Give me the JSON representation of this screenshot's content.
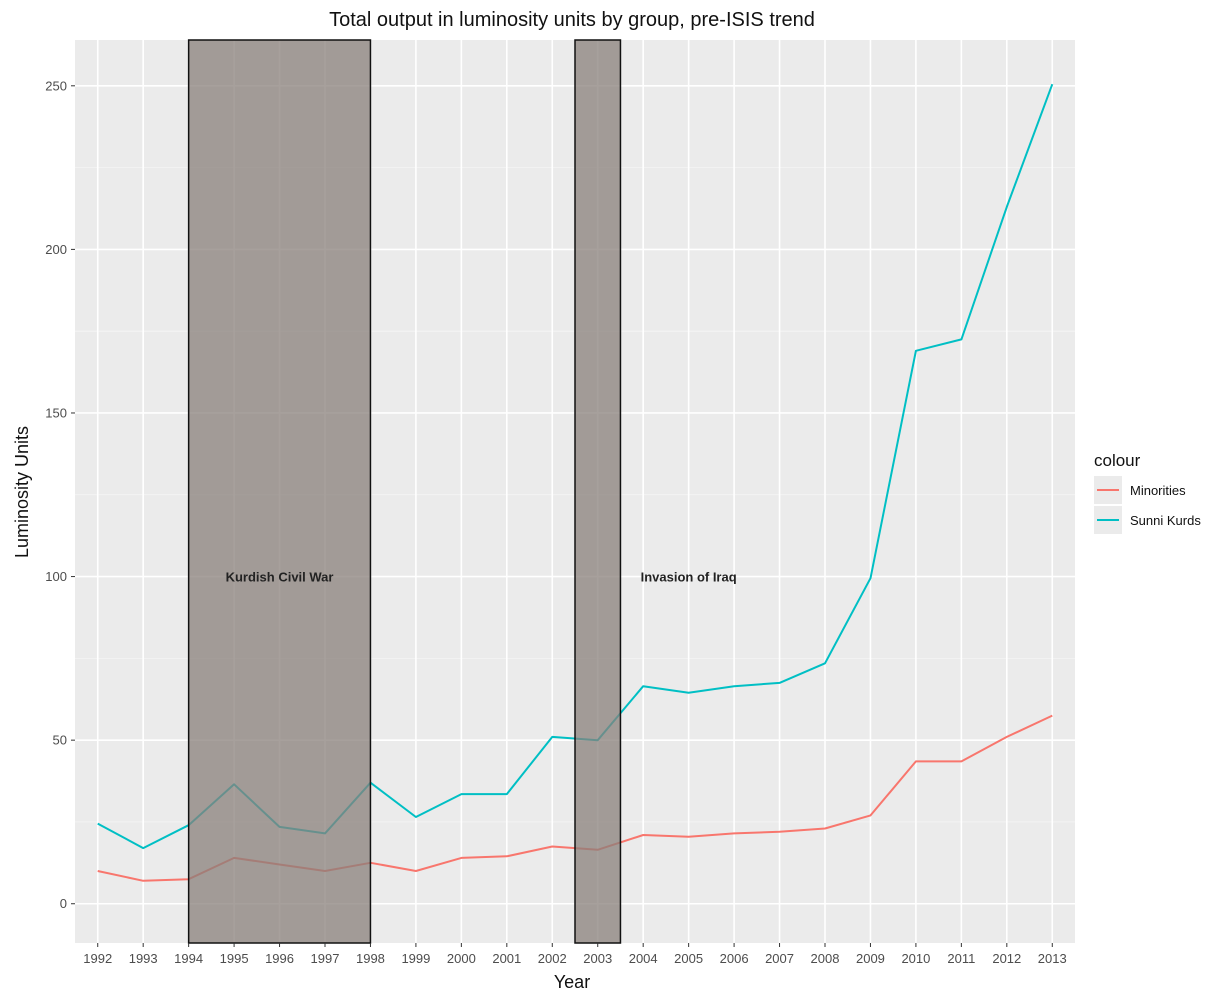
{
  "chart_data": {
    "type": "line",
    "title": "Total output in luminosity units by group, pre-ISIS trend",
    "xlabel": "Year",
    "ylabel": "Luminosity Units",
    "x": [
      1992,
      1993,
      1994,
      1995,
      1996,
      1997,
      1998,
      1999,
      2000,
      2001,
      2002,
      2003,
      2004,
      2005,
      2006,
      2007,
      2008,
      2009,
      2010,
      2011,
      2012,
      2013
    ],
    "xlim": [
      1991.5,
      2013.5
    ],
    "ylim": [
      -12,
      264
    ],
    "yticks": [
      0,
      50,
      100,
      150,
      200,
      250
    ],
    "grid": true,
    "series": [
      {
        "name": "Minorities",
        "color": "#F8766D",
        "values": [
          10,
          7,
          7.5,
          14,
          12,
          10,
          12.5,
          10,
          14,
          14.5,
          17.5,
          16.5,
          21,
          20.5,
          21.5,
          22,
          23,
          27,
          43.5,
          43.5,
          51,
          57.5
        ]
      },
      {
        "name": "Sunni Kurds",
        "color": "#00BFC4",
        "values": [
          24.5,
          17,
          24,
          36.5,
          23.5,
          21.5,
          37,
          26.5,
          33.5,
          33.5,
          51,
          50,
          66.5,
          64.5,
          66.5,
          67.5,
          73.5,
          99.5,
          169,
          172.5,
          213,
          250.5
        ]
      }
    ],
    "annotations": [
      {
        "label": "Kurdish Civil War",
        "x_start": 1994,
        "x_end": 1998,
        "label_x": 1996,
        "label_y": 100
      },
      {
        "label": "Invasion of Iraq",
        "x_start": 2002.5,
        "x_end": 2003.5,
        "label_x": 2005,
        "label_y": 100
      }
    ],
    "legend": {
      "title": "colour",
      "position": "right"
    },
    "colors": {
      "panel": "#EBEBEB",
      "grid_major": "#FFFFFF",
      "shade": "#8A807B",
      "shade_border": "#111111"
    }
  }
}
